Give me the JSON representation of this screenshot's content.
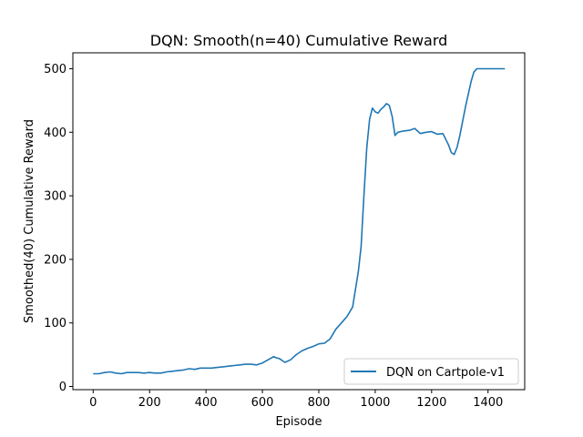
{
  "chart_data": {
    "type": "line",
    "title": "DQN: Smooth(n=40) Cumulative Reward",
    "xlabel": "Episode",
    "ylabel": "Smoothed(40) Cumulative Reward",
    "xlim": [
      -72,
      1530
    ],
    "ylim": [
      -5,
      525
    ],
    "xticks": [
      0,
      200,
      400,
      600,
      800,
      1000,
      1200,
      1400
    ],
    "yticks": [
      0,
      100,
      200,
      300,
      400,
      500
    ],
    "grid": false,
    "legend_position": "lower-right",
    "series": [
      {
        "name": "DQN on Cartpole-v1",
        "color": "#1f77b4",
        "x": [
          0,
          20,
          40,
          60,
          80,
          100,
          120,
          140,
          160,
          180,
          200,
          220,
          240,
          260,
          280,
          300,
          320,
          340,
          360,
          380,
          400,
          420,
          440,
          460,
          480,
          500,
          520,
          540,
          560,
          580,
          600,
          620,
          640,
          650,
          660,
          680,
          700,
          720,
          740,
          760,
          780,
          800,
          820,
          840,
          860,
          880,
          900,
          920,
          940,
          950,
          960,
          970,
          980,
          990,
          1000,
          1010,
          1020,
          1030,
          1040,
          1050,
          1060,
          1070,
          1080,
          1100,
          1120,
          1140,
          1160,
          1180,
          1200,
          1220,
          1240,
          1260,
          1270,
          1280,
          1290,
          1300,
          1320,
          1340,
          1350,
          1360,
          1380,
          1400,
          1420,
          1440,
          1460
        ],
        "y": [
          20,
          20,
          22,
          23,
          21,
          20,
          22,
          22,
          22,
          21,
          22,
          21,
          21,
          23,
          24,
          25,
          26,
          28,
          27,
          29,
          29,
          29,
          30,
          31,
          32,
          33,
          34,
          35,
          35,
          34,
          37,
          42,
          47,
          45,
          44,
          38,
          42,
          50,
          56,
          60,
          63,
          67,
          68,
          75,
          90,
          100,
          110,
          125,
          180,
          220,
          300,
          375,
          420,
          438,
          432,
          430,
          436,
          440,
          445,
          442,
          425,
          395,
          400,
          402,
          403,
          406,
          398,
          400,
          401,
          397,
          398,
          380,
          368,
          365,
          376,
          395,
          440,
          480,
          495,
          500,
          500,
          500,
          500,
          500,
          500
        ]
      }
    ]
  }
}
